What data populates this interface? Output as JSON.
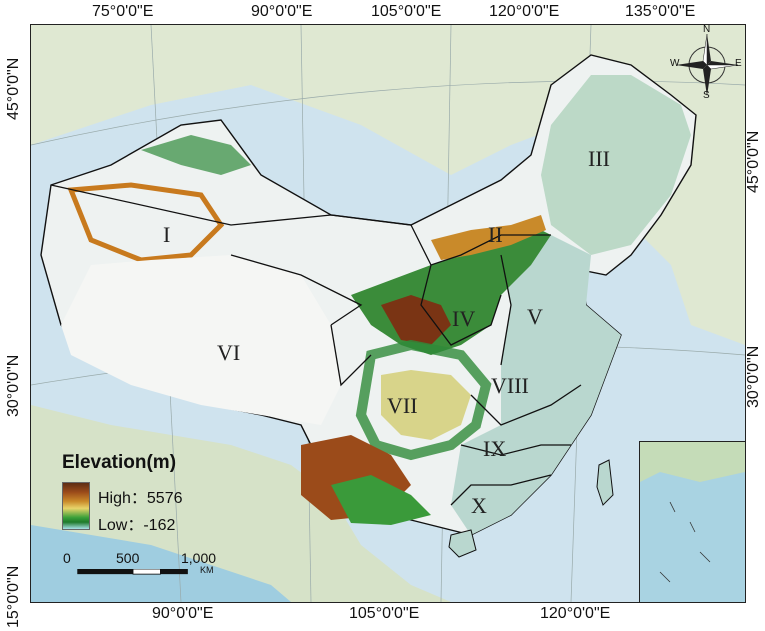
{
  "map": {
    "top_longitudes": [
      "75°0'0\"E",
      "90°0'0\"E",
      "105°0'0\"E",
      "120°0'0\"E",
      "135°0'0\"E"
    ],
    "bottom_longitudes": [
      "90°0'0\"E",
      "105°0'0\"E",
      "120°0'0\"E"
    ],
    "left_latitudes": [
      "45°0'0\"N",
      "30°0'0\"N",
      "15°0'0\"N"
    ],
    "right_latitudes": [
      "45°0'0\"N",
      "30°0'0\"N"
    ],
    "regions": [
      "I",
      "II",
      "III",
      "IV",
      "V",
      "VI",
      "VII",
      "VIII",
      "IX",
      "X"
    ],
    "compass": {
      "n": "N",
      "s": "S",
      "e": "E",
      "w": "W"
    }
  },
  "legend": {
    "title": "Elevation(m)",
    "high_label": "High：5576",
    "low_label": "Low：-162",
    "colors": [
      "#5e2d14",
      "#c98a2a",
      "#e8d46a",
      "#1e7a2a",
      "#a7e0e7"
    ]
  },
  "scale": {
    "ticks": [
      "0",
      "500",
      "1,000"
    ],
    "unit": "KM"
  }
}
